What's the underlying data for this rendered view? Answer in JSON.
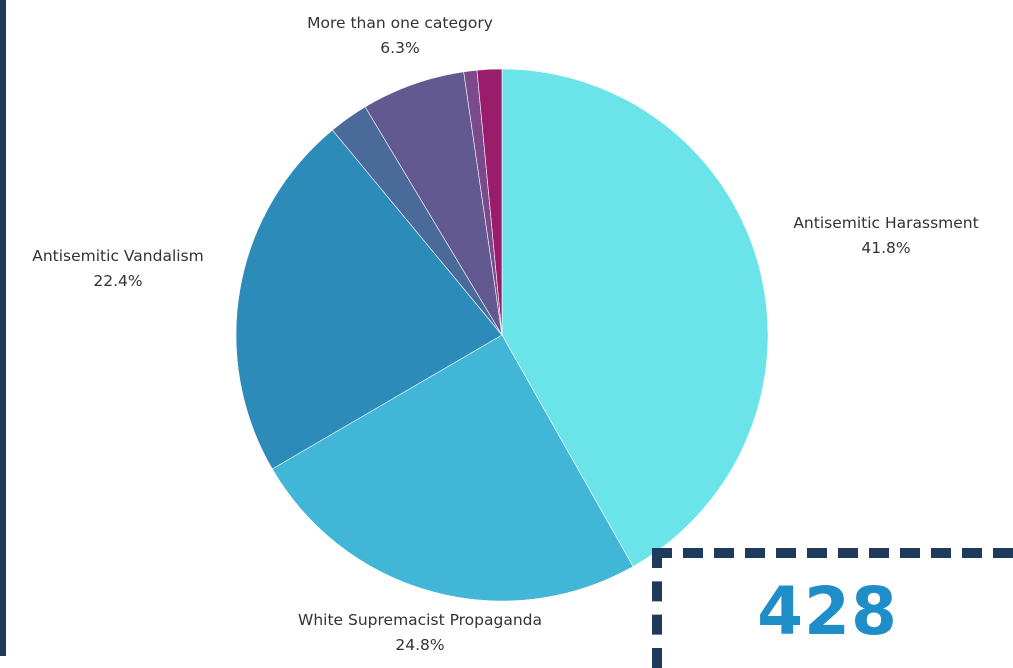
{
  "colors": {
    "frame": "#1e3a5c",
    "stat_number": "#1f8ec8",
    "label_text": "#333333"
  },
  "chart_data": {
    "type": "pie",
    "start": "12 o'clock, clockwise",
    "slices": [
      {
        "name": "Antisemitic Harassment",
        "label": "Antisemitic Harassment",
        "value": 41.8,
        "value_label": "41.8%",
        "color": "#6ae4e8"
      },
      {
        "name": "White Supremacist Propaganda",
        "label": "White Supremacist Propaganda",
        "value": 24.8,
        "value_label": "24.8%",
        "color": "#42b6d6"
      },
      {
        "name": "Antisemitic Vandalism",
        "label": "Antisemitic Vandalism",
        "value": 22.4,
        "value_label": "22.4%",
        "color": "#2d8bba"
      },
      {
        "name": "",
        "label": "",
        "value": 2.4,
        "value_label": "",
        "color": "#4a6a9a"
      },
      {
        "name": "More than one category",
        "label": "More than one category",
        "value": 6.3,
        "value_label": "6.3%",
        "color": "#625990"
      },
      {
        "name": "",
        "label": "",
        "value": 0.8,
        "value_label": "",
        "color": "#7a4a8c"
      },
      {
        "name": "",
        "label": "",
        "value": 1.5,
        "value_label": "",
        "color": "#9a1d6b"
      }
    ]
  },
  "stat_box": {
    "number": "428"
  }
}
